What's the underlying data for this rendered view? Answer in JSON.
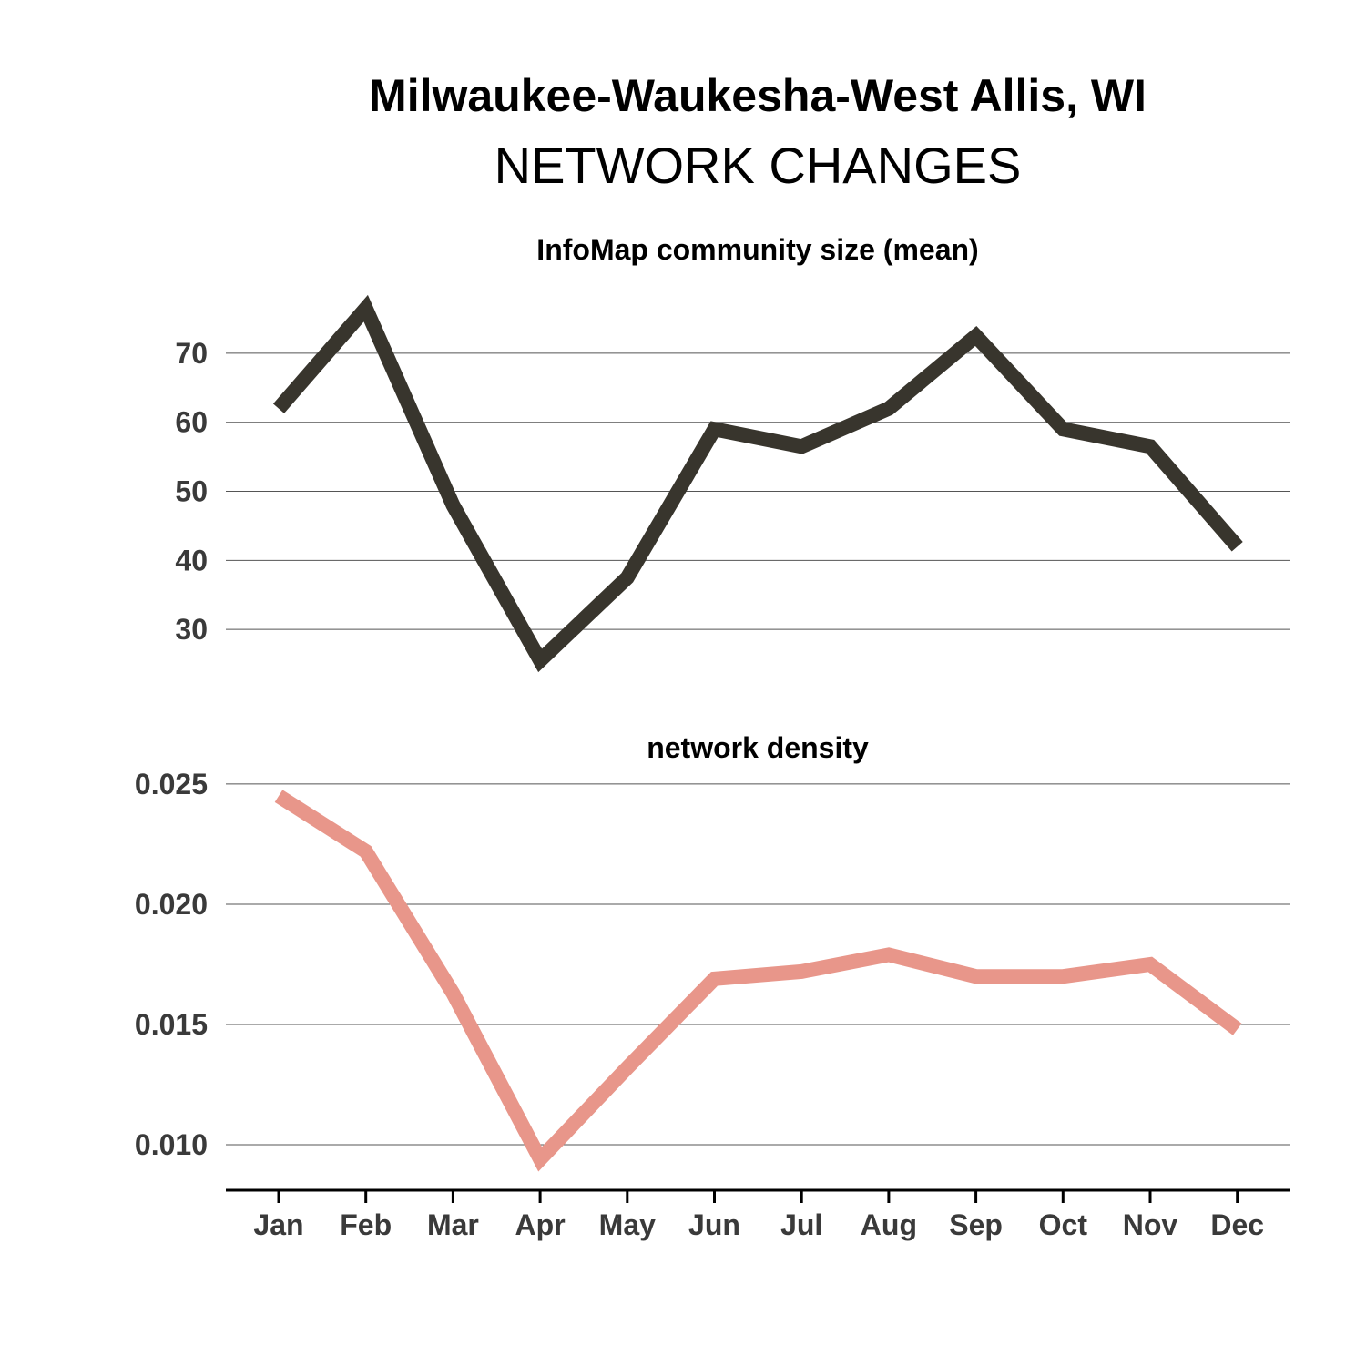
{
  "title": "Milwaukee-Waukesha-West Allis, WI",
  "subtitle": "NETWORK CHANGES",
  "chart_data": [
    {
      "type": "line",
      "title": "InfoMap community size (mean)",
      "x": [
        "Jan",
        "Feb",
        "Mar",
        "Apr",
        "May",
        "Jun",
        "Jul",
        "Aug",
        "Sep",
        "Oct",
        "Nov",
        "Dec"
      ],
      "series": [
        {
          "values": [
            62,
            76.5,
            48,
            25.5,
            37.5,
            59,
            56.5,
            62,
            72.5,
            59,
            56.5,
            42
          ]
        }
      ],
      "yticks": [
        30,
        40,
        50,
        60,
        70
      ],
      "ytick_labels": [
        "30",
        "40",
        "50",
        "60",
        "70"
      ],
      "ylim": [
        22.5,
        78.3
      ],
      "color": "#38352d",
      "grid": true
    },
    {
      "type": "line",
      "title": "network density",
      "x": [
        "Jan",
        "Feb",
        "Mar",
        "Apr",
        "May",
        "Jun",
        "Jul",
        "Aug",
        "Sep",
        "Oct",
        "Nov",
        "Dec"
      ],
      "series": [
        {
          "values": [
            0.0245,
            0.0222,
            0.0163,
            0.0094,
            0.0132,
            0.0169,
            0.0172,
            0.0179,
            0.017,
            0.017,
            0.0175,
            0.0148
          ]
        }
      ],
      "yticks": [
        0.01,
        0.015,
        0.02,
        0.025
      ],
      "ytick_labels": [
        "0.010",
        "0.015",
        "0.020",
        "0.025"
      ],
      "ylim": [
        0.0086,
        0.0253
      ],
      "color": "#e8968a",
      "grid": true
    }
  ]
}
